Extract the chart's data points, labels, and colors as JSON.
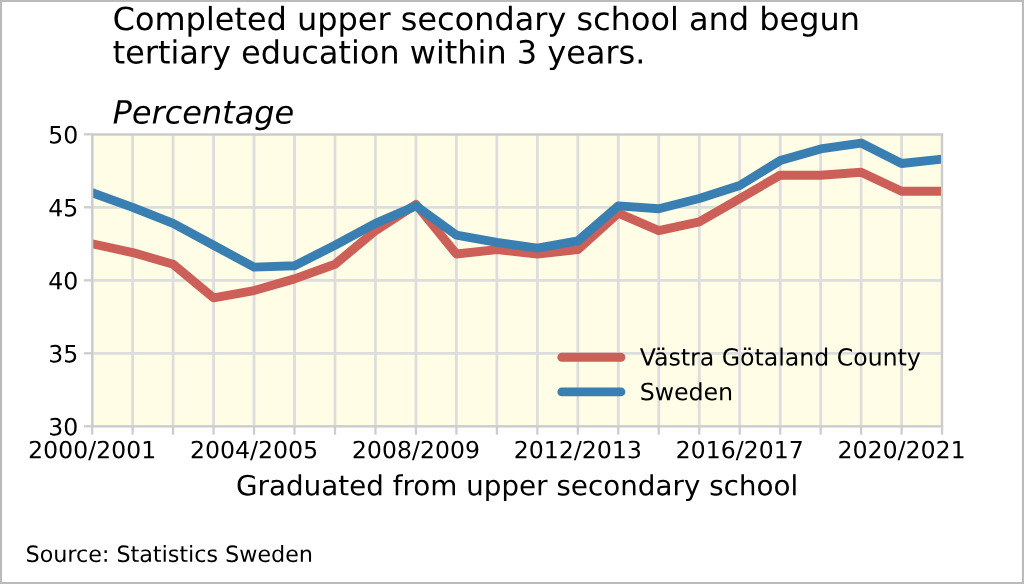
{
  "chart_data": {
    "type": "line",
    "title": "Completed upper secondary school and begun\ntertiary education within 3 years.",
    "subtitle": "Percentage",
    "xlabel": "Graduated from upper secondary school",
    "categories": [
      "2000/2001",
      null,
      null,
      null,
      "2004/2005",
      null,
      null,
      null,
      "2008/2009",
      null,
      null,
      null,
      "2012/2013",
      null,
      null,
      null,
      "2016/2017",
      null,
      null,
      null,
      "2020/2021",
      null
    ],
    "series": [
      {
        "name": "Västra Götaland County",
        "color": "#cc5f57",
        "values": [
          42.5,
          41.9,
          41.1,
          38.8,
          39.3,
          40.1,
          41.1,
          43.4,
          45.2,
          41.8,
          42.1,
          41.8,
          42.1,
          44.6,
          43.4,
          44.0,
          45.6,
          47.2,
          47.2,
          47.4,
          46.1,
          46.1
        ]
      },
      {
        "name": "Sweden",
        "color": "#3a7fb2",
        "values": [
          46.0,
          45.0,
          43.9,
          42.4,
          40.9,
          41.0,
          42.4,
          43.9,
          45.1,
          43.1,
          42.6,
          42.2,
          42.7,
          45.1,
          44.9,
          45.6,
          46.5,
          48.2,
          49.0,
          49.4,
          48.0,
          48.3
        ]
      }
    ],
    "ylim": [
      30,
      50
    ],
    "yticks": [
      30,
      35,
      40,
      45,
      50
    ],
    "grid": true,
    "legend": "bottom right",
    "marker": "none",
    "line_style": "solid",
    "annotations": [
      "Source: Statistics Sweden"
    ]
  }
}
